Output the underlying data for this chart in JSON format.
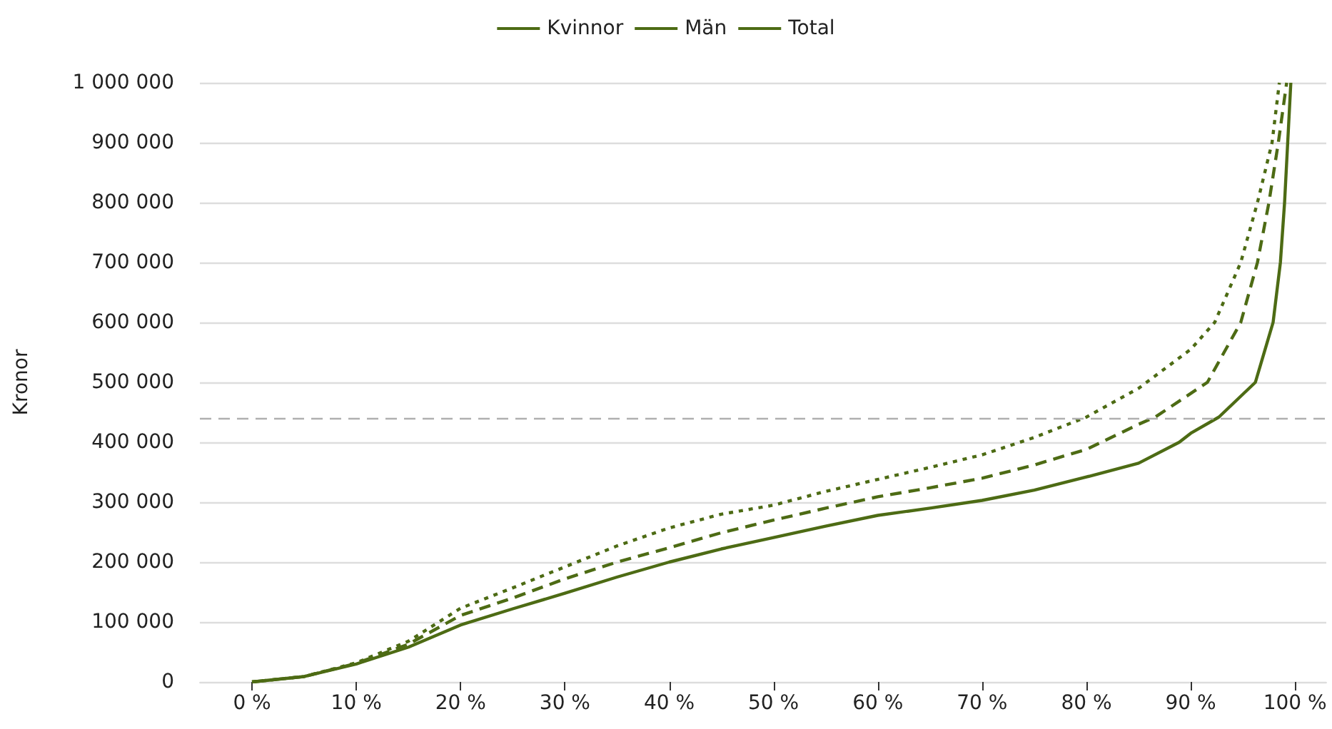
{
  "chart_data": {
    "type": "line",
    "ylabel": "Kronor",
    "legend": "top",
    "grid": "y",
    "marker": "none",
    "xlim": [
      -5,
      103
    ],
    "xticks": [
      {
        "value": 0,
        "label": "0 %"
      },
      {
        "value": 10,
        "label": "10 %"
      },
      {
        "value": 20,
        "label": "20 %"
      },
      {
        "value": 30,
        "label": "30 %"
      },
      {
        "value": 40,
        "label": "40 %"
      },
      {
        "value": 50,
        "label": "50 %"
      },
      {
        "value": 60,
        "label": "60 %"
      },
      {
        "value": 70,
        "label": "70 %"
      },
      {
        "value": 80,
        "label": "80 %"
      },
      {
        "value": 90,
        "label": "90 %"
      },
      {
        "value": 100,
        "label": "100 %"
      }
    ],
    "ylim": [
      0,
      1000000
    ],
    "yticks": [
      0,
      {
        "value": 100000,
        "label": "100 000"
      },
      {
        "value": 200000,
        "label": "200 000"
      },
      {
        "value": 300000,
        "label": "300 000"
      },
      {
        "value": 400000,
        "label": "400 000"
      },
      {
        "value": 500000,
        "label": "500 000"
      },
      {
        "value": 600000,
        "label": "600 000"
      },
      {
        "value": 700000,
        "label": "700 000"
      },
      {
        "value": 800000,
        "label": "800 000"
      },
      {
        "value": 900000,
        "label": "900 000"
      },
      {
        "value": 1000000,
        "label": "1 000 000"
      }
    ],
    "ref_lines": [
      {
        "axis": "y",
        "value": 440000,
        "color": "#b0b0b0",
        "line_style": "dashed"
      }
    ],
    "series": [
      {
        "name": "Kvinnor",
        "color": "#4d6b14",
        "line_style": "solid",
        "x": [
          0,
          5,
          10,
          15,
          20,
          25,
          30,
          35,
          40,
          45,
          50,
          55,
          60,
          65,
          70,
          75,
          80,
          85,
          88.9,
          90,
          92.7,
          96.2,
          97.9,
          98.6,
          99,
          99.3,
          99.6
        ],
        "values": [
          0,
          9000,
          30000,
          58000,
          95000,
          122000,
          148000,
          175000,
          200000,
          222000,
          241000,
          260000,
          278000,
          290000,
          303000,
          320000,
          342000,
          365000,
          400000,
          415000,
          442000,
          500000,
          600000,
          700000,
          800000,
          900000,
          1000000
        ]
      },
      {
        "name": "Män",
        "color": "#4d6b14",
        "line_style": "dotted",
        "x": [
          0,
          5,
          10,
          15,
          20,
          25,
          30,
          35,
          40,
          45,
          50,
          55,
          60,
          65,
          70,
          75,
          80,
          85,
          90,
          92.3,
          94.8,
          96.4,
          97.8,
          98.5
        ],
        "values": [
          0,
          9000,
          32000,
          68000,
          123000,
          157000,
          192000,
          227000,
          257000,
          280000,
          295000,
          318000,
          338000,
          358000,
          379000,
          408000,
          442000,
          490000,
          555000,
          600000,
          700000,
          800000,
          900000,
          1000000
        ]
      },
      {
        "name": "Total",
        "color": "#4d6b14",
        "line_style": "dashed",
        "x": [
          0,
          5,
          10,
          15,
          20,
          25,
          30,
          35,
          40,
          45,
          50,
          55,
          60,
          65,
          70,
          75,
          78.4,
          80,
          85,
          86.6,
          91.6,
          94.8,
          96.4,
          97.5,
          98.4,
          99.2
        ],
        "values": [
          0,
          9000,
          31000,
          63000,
          111000,
          140000,
          172000,
          200000,
          224000,
          249000,
          270000,
          290000,
          309000,
          324000,
          340000,
          362000,
          380000,
          388000,
          430000,
          442000,
          500000,
          600000,
          700000,
          800000,
          900000,
          1000000
        ]
      }
    ]
  }
}
